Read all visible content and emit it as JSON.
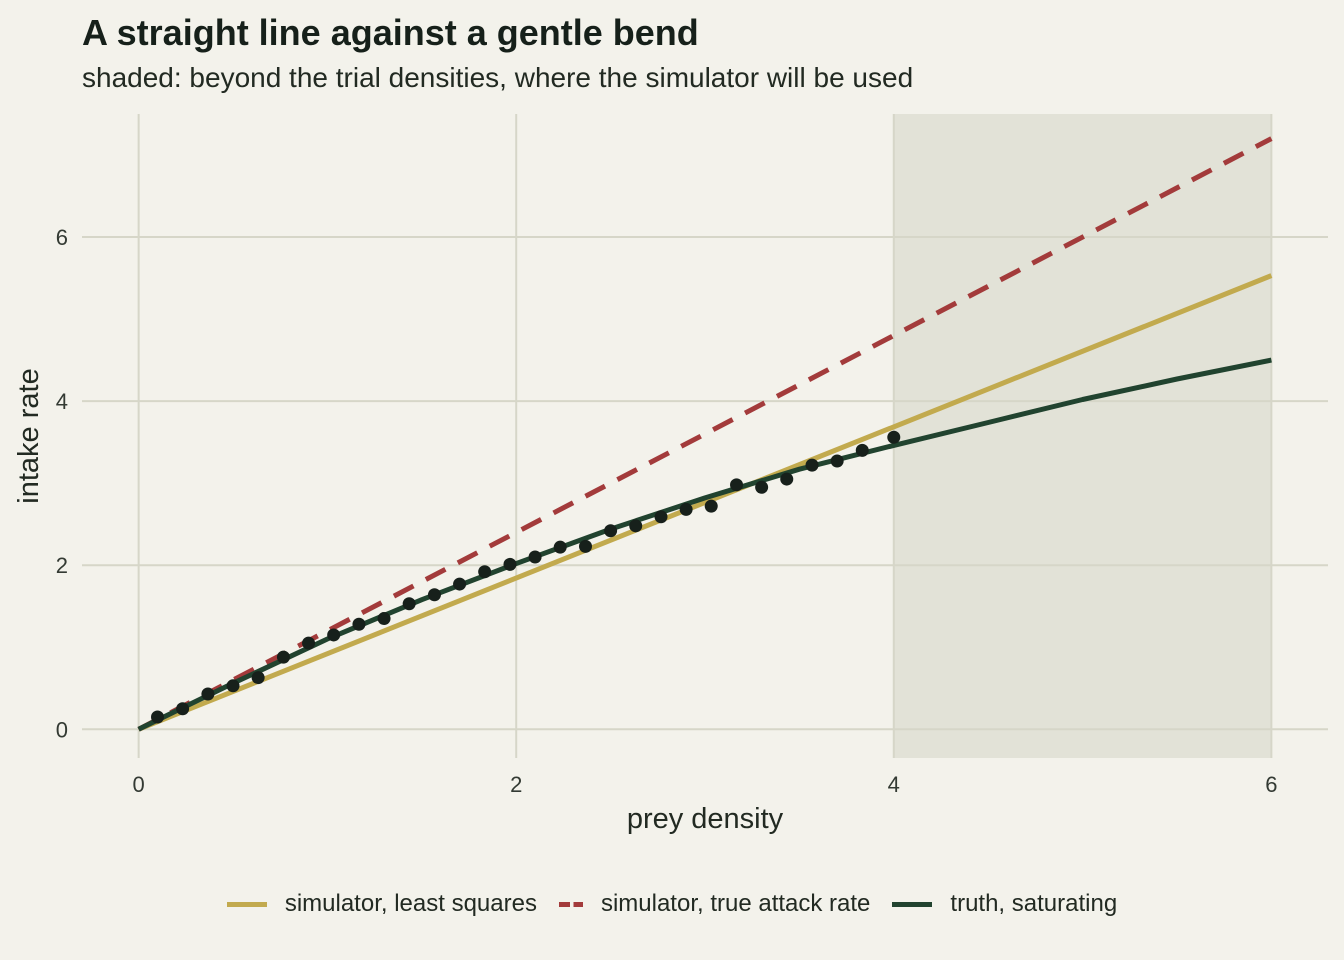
{
  "title": "A straight line against a gentle bend",
  "subtitle": "shaded: beyond the trial densities, where the simulator will be used",
  "chart_data": {
    "type": "line",
    "xlabel": "prey density",
    "ylabel": "intake rate",
    "xlim": [
      -0.3,
      6.3
    ],
    "ylim": [
      -0.35,
      7.5
    ],
    "xticks": [
      0,
      2,
      4,
      6
    ],
    "yticks": [
      0,
      2,
      4,
      6
    ],
    "grid": true,
    "legend_position": "bottom",
    "shaded_region": {
      "x": [
        4,
        6
      ]
    },
    "series": [
      {
        "name": "simulator, least squares",
        "style": "solid",
        "color": "#c2aa4e",
        "x": [
          0,
          6
        ],
        "y": [
          0,
          5.53
        ]
      },
      {
        "name": "simulator, true attack rate",
        "style": "dashed",
        "color": "#a33b3b",
        "x": [
          0,
          6
        ],
        "y": [
          0,
          7.2
        ]
      },
      {
        "name": "truth, saturating",
        "style": "solid",
        "color": "#21432f",
        "x": [
          0,
          0.5,
          1,
          1.5,
          2,
          2.5,
          3,
          3.5,
          4,
          4.5,
          5,
          5.5,
          6
        ],
        "y": [
          0,
          0.56,
          1.1,
          1.58,
          2.02,
          2.44,
          2.82,
          3.17,
          3.46,
          3.74,
          4.02,
          4.27,
          4.5
        ]
      }
    ],
    "points": {
      "color": "#17201b",
      "x": [
        0.1,
        0.233,
        0.367,
        0.5,
        0.633,
        0.767,
        0.9,
        1.033,
        1.167,
        1.3,
        1.433,
        1.567,
        1.7,
        1.833,
        1.967,
        2.1,
        2.233,
        2.367,
        2.5,
        2.633,
        2.767,
        2.9,
        3.033,
        3.167,
        3.3,
        3.433,
        3.567,
        3.7,
        3.833,
        4.0
      ],
      "y": [
        0.15,
        0.25,
        0.43,
        0.53,
        0.63,
        0.88,
        1.05,
        1.15,
        1.28,
        1.35,
        1.53,
        1.64,
        1.77,
        1.92,
        2.01,
        2.1,
        2.22,
        2.23,
        2.42,
        2.48,
        2.59,
        2.68,
        2.72,
        2.98,
        2.95,
        3.05,
        3.22,
        3.27,
        3.4,
        3.56
      ]
    }
  }
}
